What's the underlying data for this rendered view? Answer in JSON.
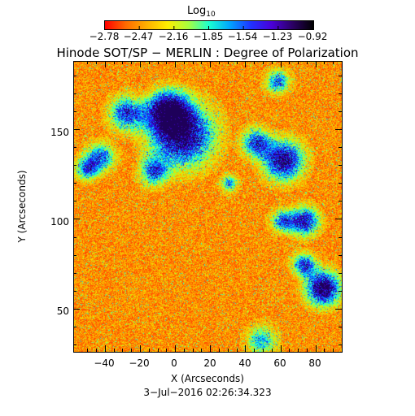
{
  "colorbar": {
    "label_main": "Log",
    "label_sub": "10",
    "tick_labels": [
      "−2.78",
      "−2.47",
      "−2.16",
      "−1.85",
      "−1.54",
      "−1.23",
      "−0.92"
    ],
    "range": [
      -2.78,
      -0.92
    ],
    "colormap": [
      "#ff0000",
      "#ff6a00",
      "#ffb000",
      "#ffee00",
      "#a8ff3e",
      "#19ffd1",
      "#00a4ff",
      "#1f33ff",
      "#4a00d8",
      "#2b0064",
      "#000000"
    ]
  },
  "title": "Hinode SOT/SP − MERLIN : Degree of Polarization",
  "axes": {
    "xlabel": "X (Arcseconds)",
    "ylabel": "Y (Arcseconds)",
    "x_ticks": [
      "−40",
      "−20",
      "0",
      "20",
      "40",
      "60",
      "80"
    ],
    "y_ticks": [
      "50",
      "100",
      "150"
    ],
    "xlim": [
      -58,
      95
    ],
    "ylim": [
      26,
      188
    ]
  },
  "timestamp": "3−Jul−2016 02:26:34.323"
}
